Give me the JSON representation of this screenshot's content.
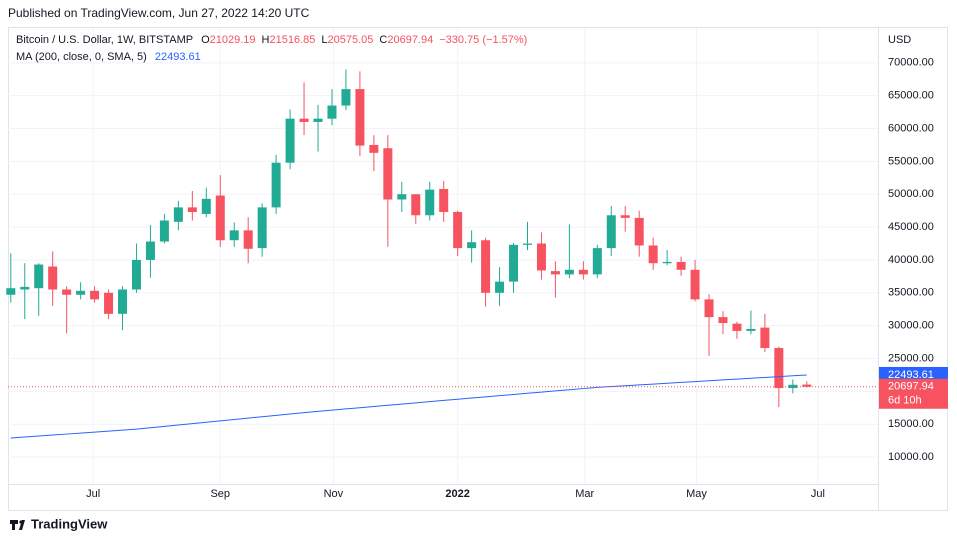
{
  "header": {
    "published": "Published on TradingView.com, Jun 27, 2022 14:20 UTC",
    "footer_brand": "TradingView"
  },
  "chart_data": {
    "type": "candlestick",
    "title": "Bitcoin / U.S. Dollar, 1W, BITSTAMP",
    "legend_letters": [
      "O",
      "H",
      "L",
      "C"
    ],
    "change": "−330.75 (−1.57%)",
    "currency": "USD",
    "countdown": "6d 10h",
    "up_color": "#22ab94",
    "down_color": "#f7525f",
    "grid": true,
    "open": [
      34700,
      35500,
      35700,
      39000,
      35500,
      34700,
      35300,
      35000,
      31800,
      35500,
      40000,
      42800,
      45800,
      48000,
      47000,
      49800,
      43000,
      44500,
      41800,
      48000,
      54800,
      61500,
      61000,
      61500,
      63500,
      66000,
      57500,
      57000,
      49200,
      50000,
      46800,
      50800,
      47300,
      41800,
      43000,
      35000,
      36700,
      42300,
      42500,
      38300,
      37800,
      38500,
      37800,
      41800,
      46800,
      46400,
      42200,
      39500,
      39700,
      38500,
      34000,
      31300,
      30300,
      29200,
      29700,
      26600,
      20500,
      21029.19
    ],
    "high": [
      41000,
      39500,
      39500,
      41300,
      36000,
      36600,
      36000,
      35500,
      36000,
      42500,
      45300,
      47000,
      49000,
      50500,
      51000,
      52900,
      45700,
      46500,
      48600,
      56000,
      62900,
      67000,
      63600,
      66000,
      69000,
      68700,
      59000,
      59000,
      51900,
      50000,
      51900,
      52000,
      47500,
      44500,
      43400,
      38900,
      42600,
      45800,
      44200,
      39800,
      45400,
      39800,
      42300,
      48200,
      48200,
      47500,
      43400,
      41500,
      40500,
      40000,
      34800,
      32200,
      30600,
      32300,
      31800,
      26800,
      21800,
      21516.85
    ],
    "low": [
      33500,
      31000,
      31500,
      33000,
      28800,
      34000,
      33500,
      31000,
      29300,
      35000,
      37300,
      42500,
      44500,
      46000,
      46500,
      42000,
      42000,
      39500,
      40500,
      47000,
      53800,
      59000,
      56500,
      60500,
      62800,
      55800,
      53500,
      42000,
      47300,
      45500,
      46000,
      45800,
      40600,
      39600,
      32900,
      33000,
      35000,
      41500,
      37000,
      34300,
      37200,
      37000,
      37200,
      40600,
      44300,
      40500,
      38500,
      39200,
      37600,
      33700,
      25400,
      28700,
      28000,
      28700,
      26000,
      17600,
      19700,
      20575.05
    ],
    "close": [
      35700,
      35900,
      39300,
      35500,
      34700,
      35300,
      34000,
      31800,
      35500,
      40000,
      42800,
      46000,
      48000,
      47300,
      49300,
      43000,
      44500,
      41700,
      48000,
      54800,
      61500,
      61000,
      61500,
      63500,
      66000,
      57400,
      56300,
      49200,
      50000,
      46800,
      50700,
      47300,
      41800,
      42700,
      35000,
      36700,
      42300,
      42500,
      38400,
      37800,
      38500,
      37800,
      41800,
      46800,
      46400,
      42200,
      39500,
      39700,
      38500,
      34000,
      31300,
      30400,
      29200,
      29500,
      26600,
      20500,
      21000,
      20697.94
    ],
    "ma": {
      "name": "MA (200, close, 0, SMA, 5)",
      "color": "#2962ff",
      "values": [
        12900,
        13050,
        13200,
        13350,
        13500,
        13650,
        13800,
        13950,
        14100,
        14250,
        14460,
        14670,
        14880,
        15090,
        15300,
        15510,
        15720,
        15930,
        16140,
        16350,
        16560,
        16770,
        16955,
        17140,
        17325,
        17510,
        17695,
        17880,
        18065,
        18250,
        18435,
        18620,
        18805,
        18985,
        19165,
        19345,
        19525,
        19705,
        19885,
        20065,
        20245,
        20425,
        20605,
        20731,
        20857,
        20983,
        21109,
        21235,
        21361,
        21487,
        21613,
        21739,
        21865,
        21991,
        22117,
        22243,
        22369,
        22493.61
      ]
    },
    "xlim": [
      -0.2,
      62.1
    ],
    "xticks": [
      {
        "value": 5.9,
        "label": "Jul"
      },
      {
        "value": 15.0,
        "label": "Sep"
      },
      {
        "value": 23.1,
        "label": "Nov"
      },
      {
        "value": 32.0,
        "label": "2022"
      },
      {
        "value": 41.1,
        "label": "Mar"
      },
      {
        "value": 49.1,
        "label": "May"
      },
      {
        "value": 57.8,
        "label": "Jul"
      }
    ],
    "ylim": [
      5900,
      75300
    ],
    "yticks": [
      {
        "value": 10000,
        "label": "10000.00"
      },
      {
        "value": 15000,
        "label": "15000.00"
      },
      {
        "value": 20000,
        "label": "20000.00"
      },
      {
        "value": 25000,
        "label": "25000.00"
      },
      {
        "value": 30000,
        "label": "30000.00"
      },
      {
        "value": 35000,
        "label": "35000.00"
      },
      {
        "value": 40000,
        "label": "40000.00"
      },
      {
        "value": 45000,
        "label": "45000.00"
      },
      {
        "value": 50000,
        "label": "50000.00"
      },
      {
        "value": 55000,
        "label": "55000.00"
      },
      {
        "value": 60000,
        "label": "60000.00"
      },
      {
        "value": 65000,
        "label": "65000.00"
      },
      {
        "value": 70000,
        "label": "70000.00"
      }
    ]
  }
}
